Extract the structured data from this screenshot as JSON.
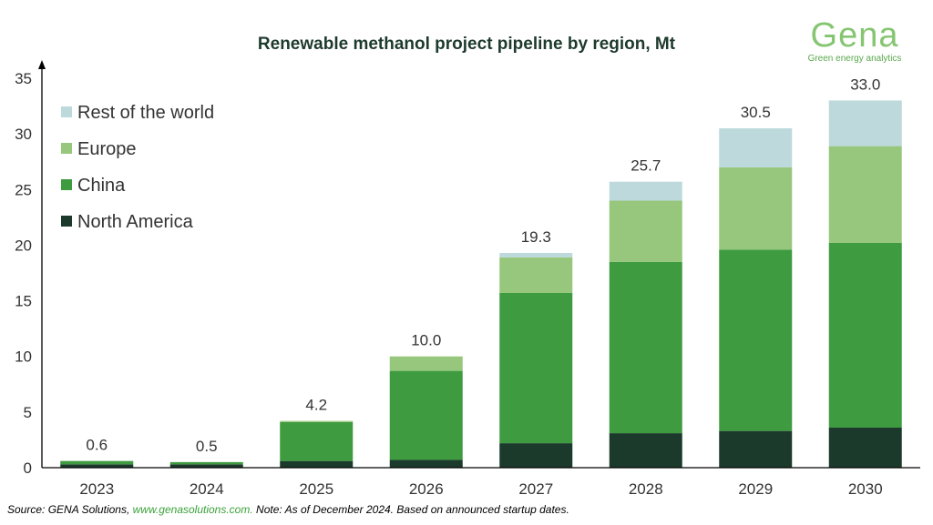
{
  "header": {
    "title": "Renewable methanol project pipeline by region, Mt"
  },
  "brand": {
    "name": "Gena",
    "tagline": "Green energy analytics",
    "color": "#86c572"
  },
  "footer": {
    "source_prefix": "Source: GENA Solutions, ",
    "source_link": "www.genasolutions.com.",
    "note": " Note: As of December 2024. Based on announced startup dates."
  },
  "chart_data": {
    "type": "bar",
    "stacked": true,
    "title": "Renewable methanol project pipeline by region, Mt",
    "xlabel": "",
    "ylabel": "",
    "categories": [
      "2023",
      "2024",
      "2025",
      "2026",
      "2027",
      "2028",
      "2029",
      "2030"
    ],
    "ylim": [
      0,
      35
    ],
    "yticks": [
      0,
      5,
      10,
      15,
      20,
      25,
      30,
      35
    ],
    "grid": false,
    "legend_position": "top-left",
    "series": [
      {
        "name": "North America",
        "color": "#1b3a2c",
        "values": [
          0.3,
          0.3,
          0.6,
          0.7,
          2.2,
          3.1,
          3.3,
          3.6
        ]
      },
      {
        "name": "China",
        "color": "#3e9b40",
        "values": [
          0.3,
          0.2,
          3.5,
          8.0,
          13.5,
          15.4,
          16.3,
          16.6
        ]
      },
      {
        "name": "Europe",
        "color": "#96c77c",
        "values": [
          0.0,
          0.0,
          0.1,
          1.3,
          3.2,
          5.5,
          7.4,
          8.7
        ]
      },
      {
        "name": "Rest of the world",
        "color": "#bdd9db",
        "values": [
          0.0,
          0.0,
          0.0,
          0.0,
          0.4,
          1.7,
          3.5,
          4.1
        ]
      }
    ],
    "totals": [
      "0.6",
      "0.5",
      "4.2",
      "10.0",
      "19.3",
      "25.7",
      "30.5",
      "33.0"
    ]
  }
}
